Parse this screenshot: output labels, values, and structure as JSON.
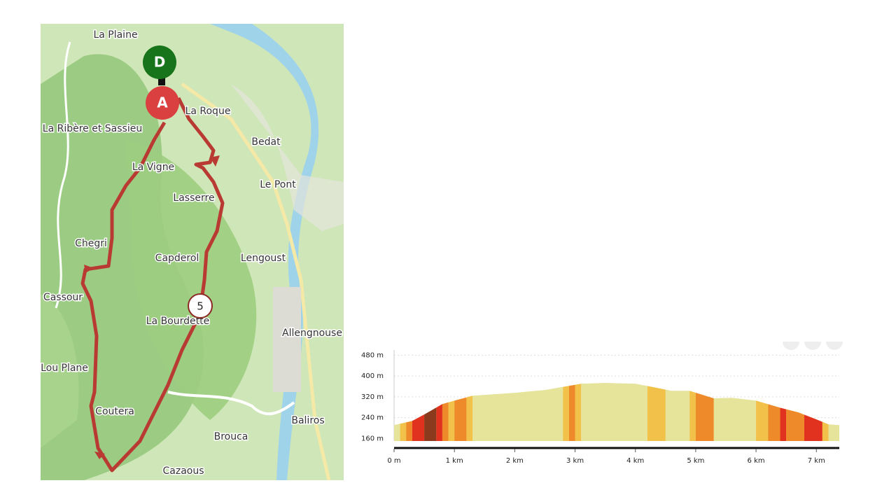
{
  "map": {
    "places": [
      "La Plaine",
      "La Roque",
      "La Ribère et Sassieu",
      "Bedat",
      "La Vigne",
      "Le Pont",
      "Lasserre",
      "Chegri",
      "Capderol",
      "Lengoust",
      "Cassour",
      "La Bourdette",
      "Allengnouse",
      "Lou Plane",
      "Coutera",
      "Baliros",
      "Brouca",
      "Cazaous"
    ],
    "markers": {
      "start": "D",
      "end": "A",
      "waypoint": "5"
    }
  },
  "chart_data": {
    "type": "area",
    "x": [
      0,
      0.3,
      0.5,
      0.8,
      1.0,
      1.3,
      2.0,
      2.5,
      2.9,
      3.1,
      3.5,
      4.0,
      4.3,
      4.6,
      4.9,
      5.3,
      5.6,
      6.0,
      6.4,
      6.7,
      7.0,
      7.2,
      7.38
    ],
    "values": [
      211,
      227,
      252,
      292,
      305,
      324,
      335,
      346,
      362,
      370,
      373,
      370,
      357,
      343,
      343,
      314,
      316,
      305,
      278,
      260,
      233,
      214,
      211
    ],
    "slope_bands": [
      {
        "from": 0,
        "to": 0.1,
        "color": "#e6e39a"
      },
      {
        "from": 0.1,
        "to": 0.2,
        "color": "#f2c14a"
      },
      {
        "from": 0.2,
        "to": 0.3,
        "color": "#ef8a2a"
      },
      {
        "from": 0.3,
        "to": 0.5,
        "color": "#e0321e"
      },
      {
        "from": 0.5,
        "to": 0.7,
        "color": "#8b3a1e"
      },
      {
        "from": 0.7,
        "to": 0.8,
        "color": "#e0321e"
      },
      {
        "from": 0.8,
        "to": 0.9,
        "color": "#ef8a2a"
      },
      {
        "from": 0.9,
        "to": 1.0,
        "color": "#f2c14a"
      },
      {
        "from": 1.0,
        "to": 1.2,
        "color": "#ef8a2a"
      },
      {
        "from": 1.2,
        "to": 1.3,
        "color": "#f2c14a"
      },
      {
        "from": 1.3,
        "to": 2.8,
        "color": "#e6e39a"
      },
      {
        "from": 2.8,
        "to": 2.9,
        "color": "#f2c14a"
      },
      {
        "from": 2.9,
        "to": 3.0,
        "color": "#ef8a2a"
      },
      {
        "from": 3.0,
        "to": 3.1,
        "color": "#f2c14a"
      },
      {
        "from": 3.1,
        "to": 4.2,
        "color": "#e6e39a"
      },
      {
        "from": 4.2,
        "to": 4.5,
        "color": "#f2c14a"
      },
      {
        "from": 4.5,
        "to": 4.9,
        "color": "#e6e39a"
      },
      {
        "from": 4.9,
        "to": 5.0,
        "color": "#f2c14a"
      },
      {
        "from": 5.0,
        "to": 5.3,
        "color": "#ef8a2a"
      },
      {
        "from": 5.3,
        "to": 6.0,
        "color": "#e6e39a"
      },
      {
        "from": 6.0,
        "to": 6.2,
        "color": "#f2c14a"
      },
      {
        "from": 6.2,
        "to": 6.4,
        "color": "#ef8a2a"
      },
      {
        "from": 6.4,
        "to": 6.5,
        "color": "#e0321e"
      },
      {
        "from": 6.5,
        "to": 6.8,
        "color": "#ef8a2a"
      },
      {
        "from": 6.8,
        "to": 7.1,
        "color": "#e0321e"
      },
      {
        "from": 7.1,
        "to": 7.2,
        "color": "#f2c14a"
      },
      {
        "from": 7.2,
        "to": 7.38,
        "color": "#e6e39a"
      }
    ],
    "xlim": [
      0,
      7.38
    ],
    "ylim": [
      150,
      500
    ],
    "xticks": [
      {
        "value": 0,
        "label": "0 m"
      },
      {
        "value": 1,
        "label": "1 km"
      },
      {
        "value": 2,
        "label": "2 km"
      },
      {
        "value": 3,
        "label": "3 km"
      },
      {
        "value": 4,
        "label": "4 km"
      },
      {
        "value": 5,
        "label": "5 km"
      },
      {
        "value": 6,
        "label": "6 km"
      },
      {
        "value": 7,
        "label": "7 km"
      }
    ],
    "yticks": [
      {
        "value": 160,
        "label": "160 m"
      },
      {
        "value": 240,
        "label": "240 m"
      },
      {
        "value": 320,
        "label": "320 m"
      },
      {
        "value": 400,
        "label": "400 m"
      },
      {
        "value": 480,
        "label": "480 m"
      }
    ],
    "grid": true
  }
}
